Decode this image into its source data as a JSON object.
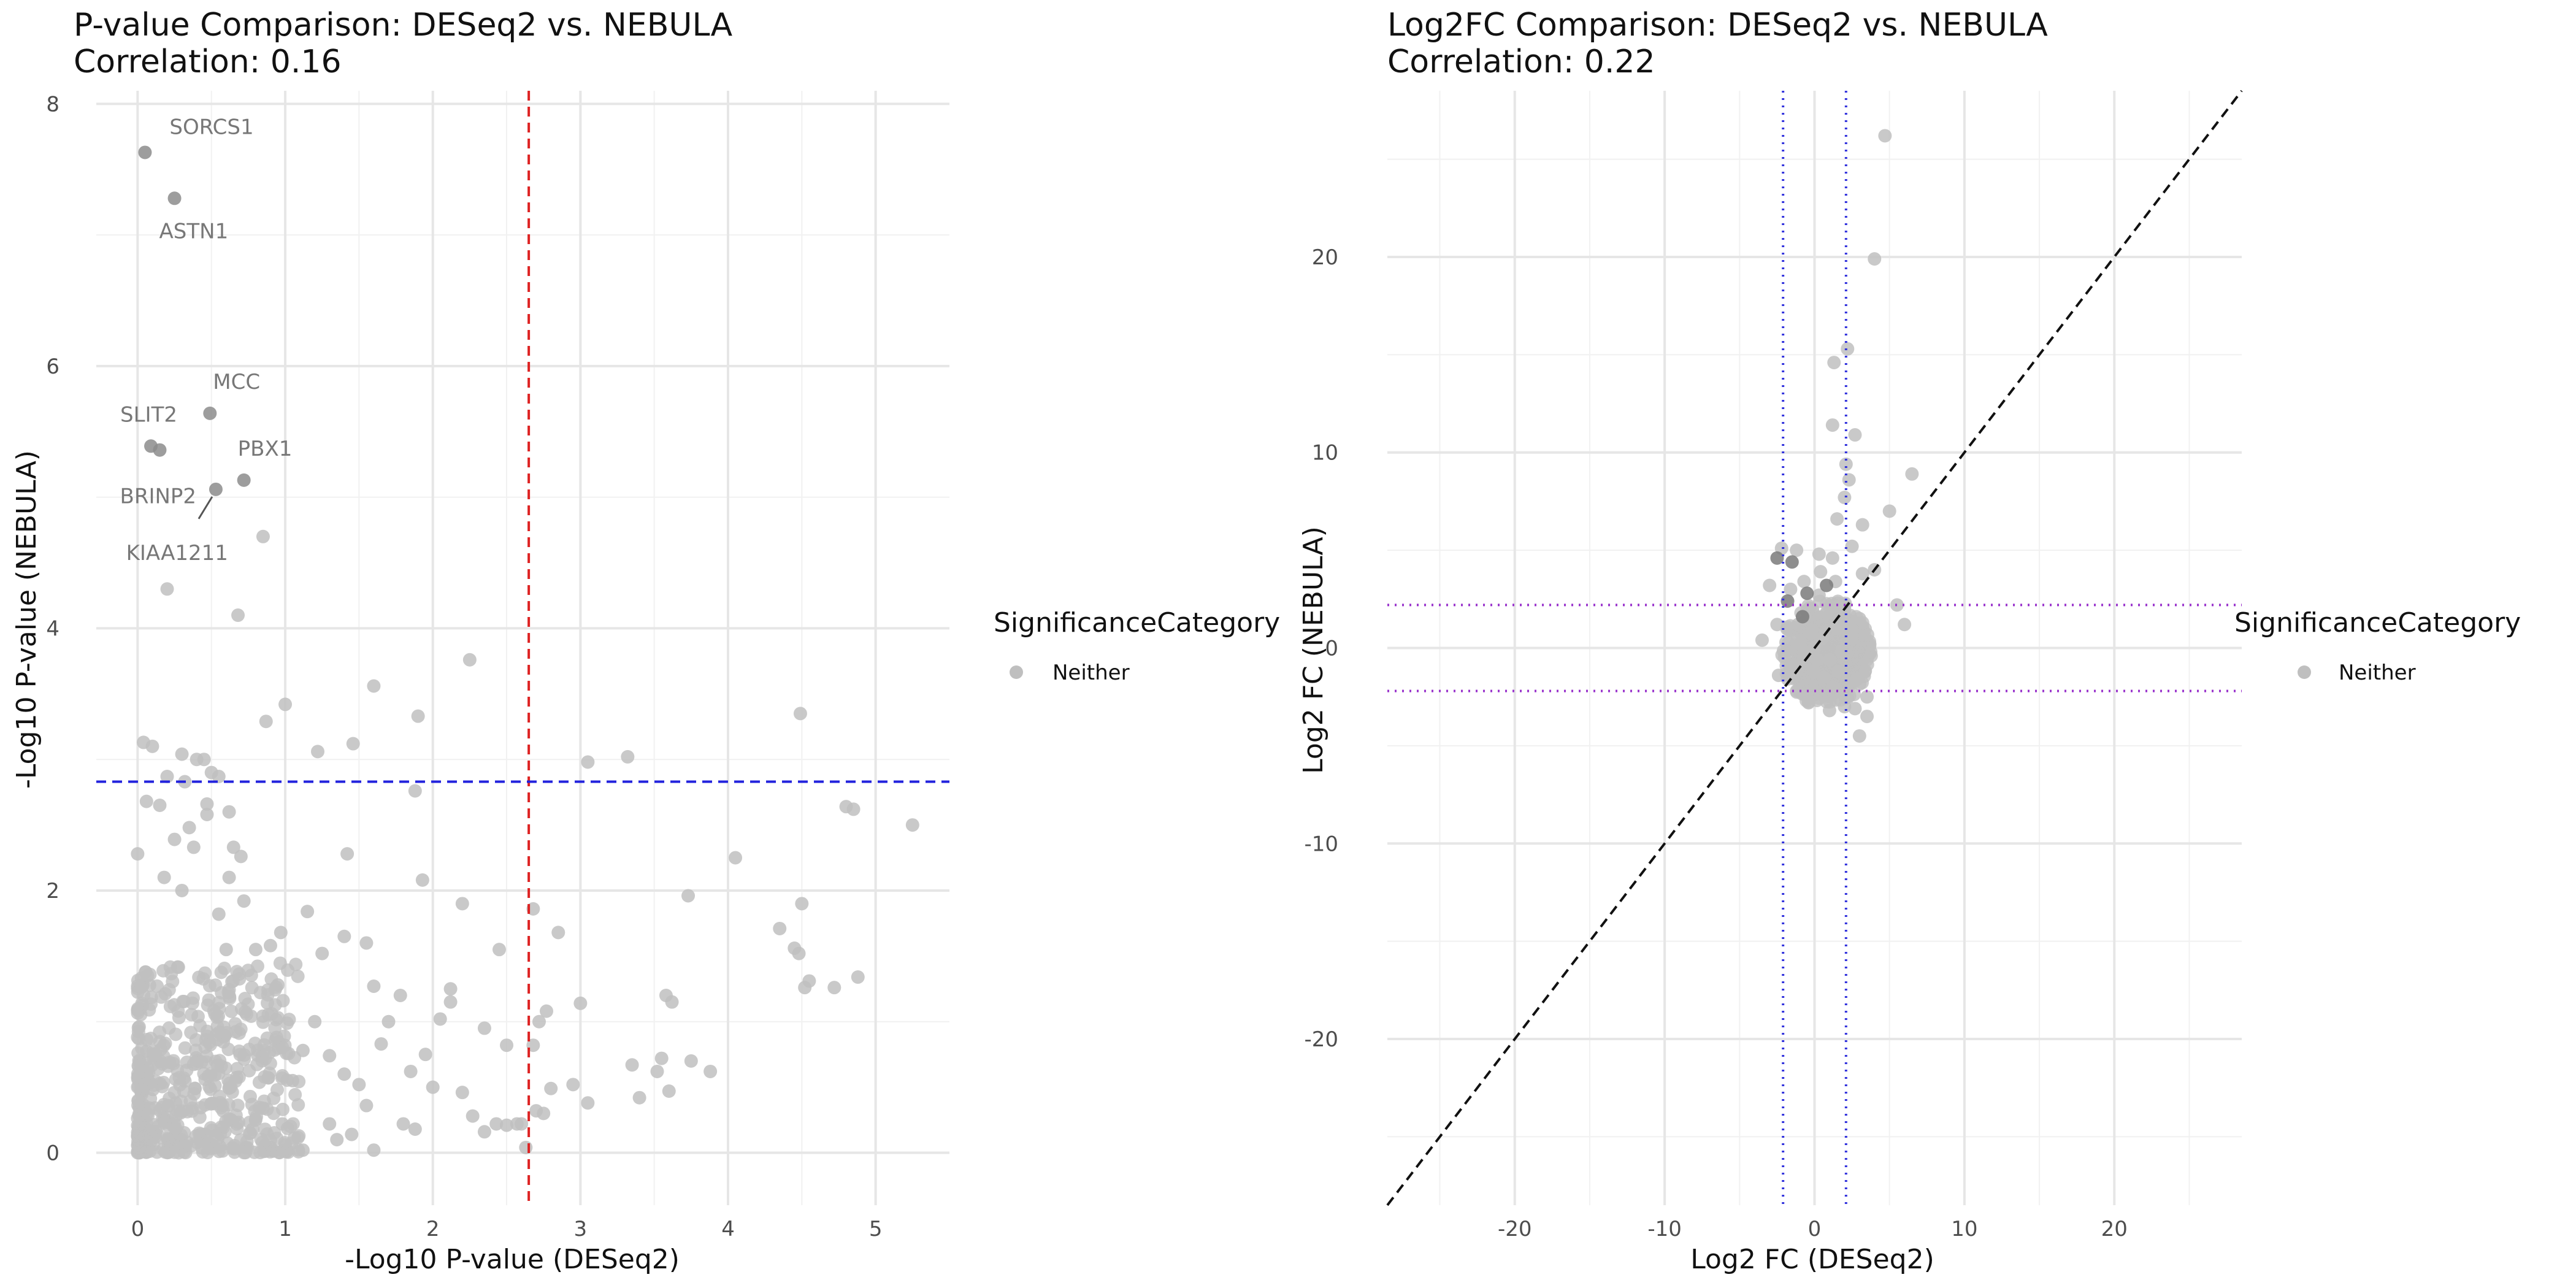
{
  "chart_data": [
    {
      "type": "scatter",
      "title": "P-value Comparison: DESeq2 vs. NEBULA",
      "subtitle": "Correlation: 0.16",
      "xlabel": "-Log10 P-value (DESeq2)",
      "ylabel": "-Log10 P-value (NEBULA)",
      "xlim": [
        -0.28,
        5.5
      ],
      "ylim": [
        -0.4,
        8.1
      ],
      "xticks": [
        "0",
        "1",
        "2",
        "3",
        "4",
        "5"
      ],
      "yticks": [
        "0",
        "2",
        "4",
        "6",
        "8"
      ],
      "grid": true,
      "legend": {
        "title": "SignificanceCategory",
        "items": [
          "Neither"
        ],
        "position": "right"
      },
      "vline": {
        "x": 2.65,
        "color": "#dd2222",
        "style": "dashed"
      },
      "hline": {
        "y": 2.83,
        "color": "#2222dd",
        "style": "dashed"
      },
      "highlighted": [
        {
          "label": "SORCS1",
          "x": 0.05,
          "y": 7.63
        },
        {
          "label": "ASTN1",
          "x": 0.25,
          "y": 7.28
        },
        {
          "label": "MCC",
          "x": 0.49,
          "y": 5.64
        },
        {
          "label": "SLIT2",
          "x": 0.09,
          "y": 5.39
        },
        {
          "label": "",
          "x": 0.15,
          "y": 5.36
        },
        {
          "label": "PBX1",
          "x": 0.72,
          "y": 5.13
        },
        {
          "label": "KIAA1211",
          "x": 0.53,
          "y": 5.06
        }
      ],
      "extra_labels": [
        "BRINP2"
      ],
      "points": [
        [
          0.85,
          4.7
        ],
        [
          0.2,
          4.3
        ],
        [
          0.68,
          4.1
        ],
        [
          1.6,
          3.56
        ],
        [
          2.25,
          3.76
        ],
        [
          1.0,
          3.42
        ],
        [
          0.87,
          3.29
        ],
        [
          1.9,
          3.33
        ],
        [
          0.04,
          3.13
        ],
        [
          0.1,
          3.1
        ],
        [
          1.22,
          3.06
        ],
        [
          1.46,
          3.12
        ],
        [
          4.49,
          3.35
        ],
        [
          0.3,
          3.04
        ],
        [
          0.4,
          3.0
        ],
        [
          0.45,
          3.0
        ],
        [
          0.5,
          2.9
        ],
        [
          0.55,
          2.87
        ],
        [
          0.2,
          2.87
        ],
        [
          0.32,
          2.83
        ],
        [
          3.05,
          2.98
        ],
        [
          3.32,
          3.02
        ],
        [
          1.88,
          2.76
        ],
        [
          0.06,
          2.68
        ],
        [
          0.15,
          2.65
        ],
        [
          0.47,
          2.66
        ],
        [
          0.47,
          2.58
        ],
        [
          0.62,
          2.6
        ],
        [
          4.8,
          2.64
        ],
        [
          4.85,
          2.62
        ],
        [
          5.25,
          2.5
        ],
        [
          0.35,
          2.48
        ],
        [
          0.25,
          2.39
        ],
        [
          0.38,
          2.33
        ],
        [
          0.65,
          2.33
        ],
        [
          0.0,
          2.28
        ],
        [
          1.42,
          2.28
        ],
        [
          4.05,
          2.25
        ],
        [
          0.18,
          2.1
        ],
        [
          0.3,
          2.0
        ],
        [
          0.62,
          2.1
        ],
        [
          1.93,
          2.08
        ],
        [
          2.85,
          1.68
        ],
        [
          3.73,
          1.96
        ],
        [
          4.5,
          1.9
        ],
        [
          2.68,
          1.86
        ],
        [
          2.2,
          1.9
        ],
        [
          4.35,
          1.71
        ],
        [
          4.45,
          1.56
        ],
        [
          4.48,
          1.52
        ],
        [
          4.72,
          1.26
        ],
        [
          4.88,
          1.34
        ],
        [
          4.55,
          1.31
        ],
        [
          4.52,
          1.26
        ],
        [
          3.58,
          1.2
        ],
        [
          3.62,
          1.15
        ],
        [
          3.0,
          1.14
        ],
        [
          2.77,
          1.08
        ],
        [
          2.72,
          1.0
        ],
        [
          2.68,
          0.82
        ],
        [
          3.35,
          0.67
        ],
        [
          3.55,
          0.72
        ],
        [
          3.52,
          0.62
        ],
        [
          3.75,
          0.7
        ],
        [
          3.88,
          0.62
        ],
        [
          2.95,
          0.52
        ],
        [
          2.8,
          0.49
        ],
        [
          3.05,
          0.38
        ],
        [
          3.4,
          0.42
        ],
        [
          3.6,
          0.47
        ],
        [
          2.7,
          0.32
        ],
        [
          2.75,
          0.3
        ],
        [
          2.43,
          0.22
        ],
        [
          2.5,
          0.21
        ],
        [
          2.57,
          0.22
        ],
        [
          2.35,
          0.16
        ],
        [
          2.6,
          0.22
        ],
        [
          2.63,
          0.04
        ],
        [
          2.2,
          0.46
        ],
        [
          2.27,
          0.28
        ],
        [
          2.05,
          1.02
        ],
        [
          2.12,
          1.15
        ],
        [
          2.12,
          1.25
        ],
        [
          2.45,
          1.55
        ],
        [
          2.5,
          0.82
        ],
        [
          2.35,
          0.95
        ],
        [
          1.78,
          1.2
        ],
        [
          1.7,
          1.0
        ],
        [
          1.65,
          0.83
        ],
        [
          1.85,
          0.62
        ],
        [
          1.95,
          0.75
        ],
        [
          2.0,
          0.5
        ],
        [
          1.8,
          0.22
        ],
        [
          1.88,
          0.18
        ],
        [
          1.55,
          0.36
        ],
        [
          1.5,
          0.52
        ],
        [
          1.6,
          0.02
        ],
        [
          1.45,
          0.14
        ],
        [
          1.4,
          0.6
        ],
        [
          1.3,
          0.74
        ],
        [
          1.25,
          1.52
        ],
        [
          1.15,
          1.84
        ],
        [
          1.4,
          1.65
        ],
        [
          1.55,
          1.6
        ],
        [
          1.6,
          1.27
        ],
        [
          1.2,
          1.0
        ],
        [
          1.12,
          0.78
        ],
        [
          1.05,
          0.55
        ],
        [
          0.95,
          1.28
        ],
        [
          0.9,
          1.58
        ],
        [
          0.97,
          1.68
        ],
        [
          0.8,
          1.55
        ],
        [
          0.72,
          1.92
        ],
        [
          0.7,
          2.26
        ],
        [
          0.55,
          1.82
        ],
        [
          0.6,
          1.55
        ],
        [
          0.98,
          0.22
        ],
        [
          0.9,
          0.04
        ],
        [
          1.0,
          0.06
        ],
        [
          1.12,
          0.02
        ],
        [
          1.3,
          0.22
        ],
        [
          1.35,
          0.1
        ],
        [
          0.78,
          0.18
        ],
        [
          0.85,
          0.34
        ]
      ]
    },
    {
      "type": "scatter",
      "title": "Log2FC Comparison: DESeq2 vs. NEBULA",
      "subtitle": "Correlation: 0.22",
      "xlabel": "Log2 FC (DESeq2)",
      "ylabel": "Log2 FC (NEBULA)",
      "xlim": [
        -28.5,
        28.5
      ],
      "ylim": [
        -28.5,
        28.5
      ],
      "xticks": [
        "-20",
        "-10",
        "0",
        "10",
        "20"
      ],
      "yticks": [
        "-20",
        "-10",
        "0",
        "10",
        "20"
      ],
      "grid": true,
      "legend": {
        "title": "SignificanceCategory",
        "items": [
          "Neither"
        ],
        "position": "right"
      },
      "vlines": {
        "x": [
          -2.1,
          2.1
        ],
        "color": "#3333dd",
        "style": "dotted"
      },
      "hlines": {
        "y": [
          -2.2,
          2.2
        ],
        "color": "#9933cc",
        "style": "dotted"
      },
      "diagonal": {
        "color": "#111111",
        "style": "dashed"
      },
      "highlighted": [
        [
          -2.5,
          4.6
        ],
        [
          -1.5,
          4.4
        ],
        [
          -0.5,
          2.8
        ],
        [
          0.8,
          3.2
        ],
        [
          -1.8,
          2.4
        ],
        [
          -0.8,
          1.6
        ]
      ],
      "points": [
        [
          4.7,
          26.2
        ],
        [
          4.0,
          19.9
        ],
        [
          2.2,
          15.3
        ],
        [
          1.3,
          14.6
        ],
        [
          1.2,
          11.4
        ],
        [
          2.7,
          10.9
        ],
        [
          2.1,
          9.4
        ],
        [
          2.3,
          8.6
        ],
        [
          2.0,
          7.7
        ],
        [
          6.5,
          8.9
        ],
        [
          5.0,
          7.0
        ],
        [
          3.2,
          6.3
        ],
        [
          1.5,
          6.6
        ],
        [
          2.5,
          5.2
        ],
        [
          -2.2,
          5.1
        ],
        [
          -1.2,
          5.0
        ],
        [
          0.3,
          4.8
        ],
        [
          1.2,
          4.6
        ],
        [
          4.0,
          4.0
        ],
        [
          3.2,
          3.8
        ],
        [
          -3.0,
          3.2
        ],
        [
          -1.6,
          3.0
        ],
        [
          5.5,
          2.2
        ],
        [
          6.0,
          1.2
        ],
        [
          -2.5,
          1.2
        ],
        [
          -3.5,
          0.4
        ],
        [
          0.5,
          0.5
        ],
        [
          -0.5,
          -0.3
        ],
        [
          1.0,
          -0.6
        ],
        [
          1.5,
          1.0
        ],
        [
          -1.0,
          0.2
        ],
        [
          0.0,
          -1.2
        ],
        [
          1.8,
          -0.2
        ],
        [
          2.5,
          0.5
        ],
        [
          -2.0,
          -0.5
        ],
        [
          0.8,
          1.8
        ],
        [
          -1.5,
          -1.5
        ],
        [
          1.2,
          -2.0
        ],
        [
          2.8,
          -1.6
        ],
        [
          3.5,
          -2.5
        ],
        [
          3.5,
          -3.5
        ],
        [
          3.0,
          -4.5
        ],
        [
          2.0,
          -3.0
        ],
        [
          2.7,
          -3.1
        ],
        [
          -0.4,
          -2.8
        ],
        [
          1.0,
          -3.2
        ],
        [
          0.3,
          2.7
        ],
        [
          -0.7,
          3.4
        ],
        [
          0.0,
          0.0
        ],
        [
          0.2,
          -0.6
        ],
        [
          -0.2,
          0.8
        ],
        [
          0.6,
          -1.5
        ],
        [
          1.6,
          -1.2
        ],
        [
          2.2,
          0.9
        ],
        [
          3.0,
          1.5
        ],
        [
          -1.1,
          1.2
        ],
        [
          -2.4,
          -1.4
        ],
        [
          -1.2,
          -2.2
        ],
        [
          0.4,
          3.9
        ],
        [
          1.4,
          3.4
        ]
      ]
    }
  ]
}
